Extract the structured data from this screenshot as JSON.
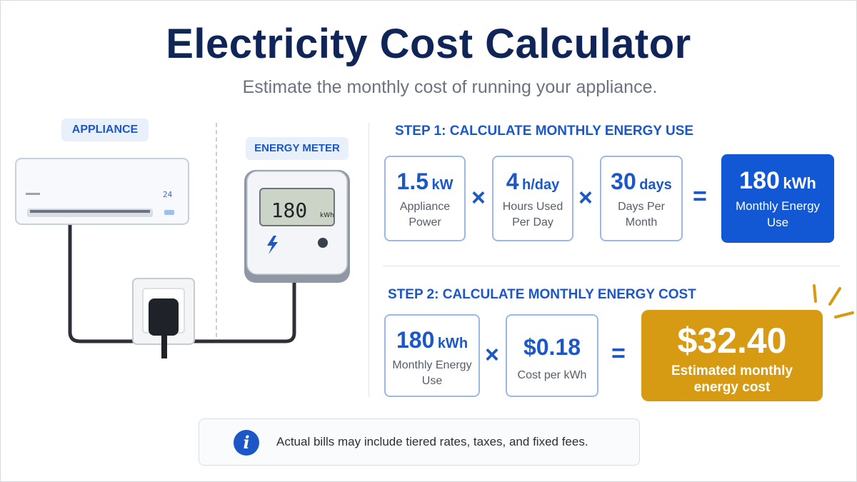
{
  "header": {
    "title": "Electricity Cost Calculator",
    "subtitle": "Estimate the monthly cost of running your appliance."
  },
  "illustration": {
    "appliance_tag": "APPLIANCE",
    "meter_tag": "ENERGY METER",
    "ac_display": "24",
    "meter_reading": "180",
    "meter_unit": "kWh"
  },
  "step1": {
    "heading": "STEP 1:  CALCULATE MONTHLY ENERGY USE",
    "operator_times": "×",
    "operator_equals": "=",
    "terms": [
      {
        "value": "1.5",
        "unit": "kW",
        "label_line1": "Appliance",
        "label_line2": "Power"
      },
      {
        "value": "4",
        "unit": "h/day",
        "label_line1": "Hours Used",
        "label_line2": "Per Day"
      },
      {
        "value": "30",
        "unit": "days",
        "label_line1": "Days Per",
        "label_line2": "Month"
      }
    ],
    "result": {
      "value": "180",
      "unit": "kWh",
      "label_line1": "Monthly Energy",
      "label_line2": "Use"
    }
  },
  "step2": {
    "heading": "STEP 2:  CALCULATE MONTHLY ENERGY COST",
    "terms": [
      {
        "value": "180",
        "unit": "kWh",
        "label_line1": "Monthly Energy",
        "label_line2": "Use"
      },
      {
        "value": "$0.18",
        "unit": "",
        "label_line1": "Cost per kWh",
        "label_line2": ""
      }
    ],
    "result": {
      "value": "$32.40",
      "label_line1": "Estimated monthly",
      "label_line2": "energy cost"
    }
  },
  "note": {
    "icon": "info-icon",
    "text": "Actual bills may include tiered rates, taxes, and fixed fees."
  },
  "colors": {
    "title": "#0f2557",
    "accent_blue": "#1b57c7",
    "result_blue": "#1257d3",
    "result_gold": "#d79a13"
  }
}
